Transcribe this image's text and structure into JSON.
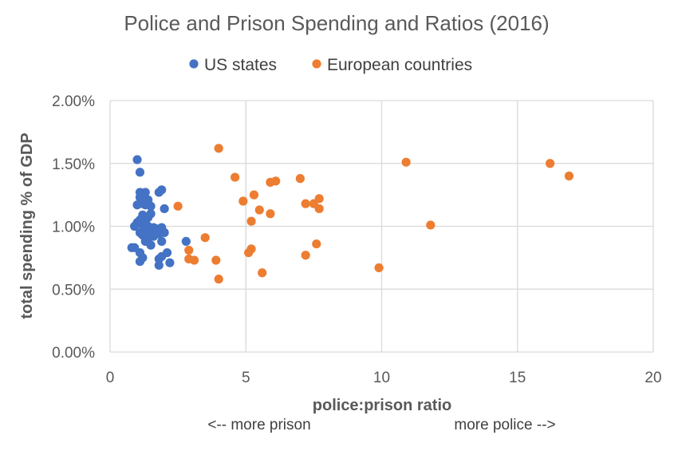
{
  "chart_data": {
    "type": "scatter",
    "title": "Police and Prison Spending and Ratios (2016)",
    "xlabel": "police:prison ratio",
    "ylabel": "total spending % of GDP",
    "xlim": [
      0,
      20
    ],
    "ylim": [
      0,
      2.0
    ],
    "x_ticks": [
      "0",
      "5",
      "10",
      "15",
      "20"
    ],
    "y_ticks": [
      "0.00%",
      "0.50%",
      "1.00%",
      "1.50%",
      "2.00%"
    ],
    "grid": true,
    "legend_position": "top",
    "annotations": {
      "left": "<-- more prison",
      "right": "more police -->"
    },
    "series": [
      {
        "name": "US states",
        "color": "#4472C4",
        "points": [
          [
            1.0,
            1.53
          ],
          [
            1.1,
            1.43
          ],
          [
            1.1,
            1.27
          ],
          [
            1.3,
            1.27
          ],
          [
            1.8,
            1.27
          ],
          [
            1.9,
            1.29
          ],
          [
            1.1,
            1.23
          ],
          [
            1.2,
            1.22
          ],
          [
            1.4,
            1.21
          ],
          [
            1.2,
            1.18
          ],
          [
            1.3,
            1.17
          ],
          [
            1.5,
            1.16
          ],
          [
            1.0,
            1.17
          ],
          [
            2.0,
            1.14
          ],
          [
            1.5,
            1.1
          ],
          [
            1.2,
            1.09
          ],
          [
            1.4,
            1.07
          ],
          [
            1.1,
            1.05
          ],
          [
            1.3,
            1.04
          ],
          [
            1.0,
            1.03
          ],
          [
            1.2,
            1.01
          ],
          [
            0.9,
            1.0
          ],
          [
            1.4,
            1.0
          ],
          [
            1.6,
            0.99
          ],
          [
            1.9,
            0.99
          ],
          [
            1.7,
            0.98
          ],
          [
            1.3,
            0.97
          ],
          [
            1.1,
            0.95
          ],
          [
            1.5,
            0.95
          ],
          [
            2.0,
            0.95
          ],
          [
            1.8,
            0.94
          ],
          [
            1.2,
            0.93
          ],
          [
            1.6,
            0.92
          ],
          [
            1.4,
            0.9
          ],
          [
            1.9,
            0.88
          ],
          [
            1.3,
            0.88
          ],
          [
            2.8,
            0.88
          ],
          [
            1.5,
            0.85
          ],
          [
            0.8,
            0.83
          ],
          [
            0.9,
            0.83
          ],
          [
            1.1,
            0.79
          ],
          [
            2.1,
            0.79
          ],
          [
            1.9,
            0.76
          ],
          [
            1.2,
            0.75
          ],
          [
            1.8,
            0.74
          ],
          [
            1.1,
            0.72
          ],
          [
            2.2,
            0.71
          ],
          [
            1.8,
            0.69
          ]
        ]
      },
      {
        "name": "European countries",
        "color": "#ED7D31",
        "points": [
          [
            4.0,
            1.62
          ],
          [
            4.6,
            1.39
          ],
          [
            5.9,
            1.35
          ],
          [
            6.1,
            1.36
          ],
          [
            7.0,
            1.38
          ],
          [
            5.3,
            1.25
          ],
          [
            4.9,
            1.2
          ],
          [
            7.7,
            1.22
          ],
          [
            2.5,
            1.16
          ],
          [
            7.2,
            1.18
          ],
          [
            7.5,
            1.18
          ],
          [
            5.5,
            1.13
          ],
          [
            7.7,
            1.14
          ],
          [
            5.9,
            1.1
          ],
          [
            5.2,
            1.04
          ],
          [
            10.9,
            1.51
          ],
          [
            11.8,
            1.01
          ],
          [
            16.2,
            1.5
          ],
          [
            16.9,
            1.4
          ],
          [
            3.5,
            0.91
          ],
          [
            7.6,
            0.86
          ],
          [
            5.2,
            0.82
          ],
          [
            5.1,
            0.79
          ],
          [
            2.9,
            0.81
          ],
          [
            2.9,
            0.74
          ],
          [
            3.1,
            0.73
          ],
          [
            3.9,
            0.73
          ],
          [
            7.2,
            0.77
          ],
          [
            9.9,
            0.67
          ],
          [
            5.6,
            0.63
          ],
          [
            4.0,
            0.58
          ]
        ]
      }
    ]
  }
}
